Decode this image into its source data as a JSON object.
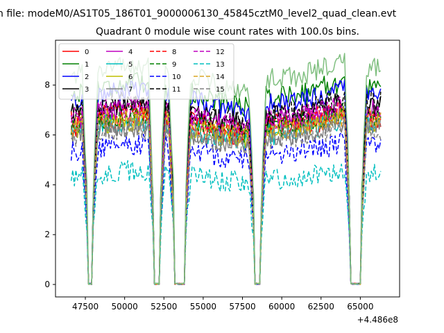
{
  "figure": {
    "suptitle": "n file: modeM0/AS1T05_186T01_9000006130_45845cztM0_level2_quad_clean.evt",
    "title": "Quadrant 0 module wise count rates with 100.0s bins.",
    "offset_text": "+4.486e8"
  },
  "chart_data": {
    "type": "line",
    "title": "Quadrant 0 module wise count rates with 100.0s bins.",
    "xlabel": "",
    "ylabel": "",
    "x_offset": 448600000,
    "xlim": [
      45600,
      67500
    ],
    "ylim": [
      -0.5,
      9.8
    ],
    "grid": false,
    "legend_position": "top-left",
    "x_ticks": [
      {
        "value": 47500,
        "label": "47500"
      },
      {
        "value": 50000,
        "label": "50000"
      },
      {
        "value": 52500,
        "label": "52500"
      },
      {
        "value": 55000,
        "label": "55000"
      },
      {
        "value": 57500,
        "label": "57500"
      },
      {
        "value": 60000,
        "label": "60000"
      },
      {
        "value": 62500,
        "label": "62500"
      },
      {
        "value": 65000,
        "label": "65000"
      }
    ],
    "y_ticks": [
      {
        "value": 0,
        "label": "0"
      },
      {
        "value": 2,
        "label": "2"
      },
      {
        "value": 4,
        "label": "4"
      },
      {
        "value": 6,
        "label": "6"
      },
      {
        "value": 8,
        "label": "8"
      }
    ],
    "x_range": [
      46600,
      66300
    ],
    "bin_width": 100,
    "gaps": [
      {
        "start": 47600,
        "end": 48000
      },
      {
        "start": 51800,
        "end": 52300
      },
      {
        "start": 53100,
        "end": 53900
      },
      {
        "start": 58200,
        "end": 58700
      },
      {
        "start": 64300,
        "end": 65100
      }
    ],
    "series": [
      {
        "name": "0",
        "color": "#ff0000",
        "dash": "solid",
        "level": 6.3
      },
      {
        "name": "1",
        "color": "#008000",
        "dash": "solid",
        "level": 7.6
      },
      {
        "name": "2",
        "color": "#0000ff",
        "dash": "solid",
        "level": 7.3
      },
      {
        "name": "3",
        "color": "#000000",
        "dash": "solid",
        "level": 6.8
      },
      {
        "name": "4",
        "color": "#bf00bf",
        "dash": "solid",
        "level": 6.6
      },
      {
        "name": "5",
        "color": "#00bfbf",
        "dash": "solid",
        "level": 6.1
      },
      {
        "name": "6",
        "color": "#bfbf00",
        "dash": "solid",
        "level": 6.2
      },
      {
        "name": "7",
        "color": "#808080",
        "dash": "solid",
        "level": 6.0
      },
      {
        "name": "8",
        "color": "#ff0000",
        "dash": "dashed",
        "level": 6.5
      },
      {
        "name": "9",
        "color": "#008000",
        "dash": "dashed",
        "level": 6.4
      },
      {
        "name": "10",
        "color": "#0000ff",
        "dash": "dashed",
        "level": 5.3
      },
      {
        "name": "11",
        "color": "#000000",
        "dash": "dashed",
        "level": 6.9
      },
      {
        "name": "12",
        "color": "#bf00bf",
        "dash": "dashed",
        "level": 6.7
      },
      {
        "name": "13",
        "color": "#00bfbf",
        "dash": "dashed",
        "level": 4.3
      },
      {
        "name": "14",
        "color": "#daa520",
        "dash": "dashed",
        "level": 6.3
      },
      {
        "name": "15",
        "color": "#808080",
        "dash": "dashed",
        "level": 5.9
      },
      {
        "name": "",
        "color": "#7fbf7f",
        "dash": "solid",
        "level": 8.3
      }
    ]
  }
}
